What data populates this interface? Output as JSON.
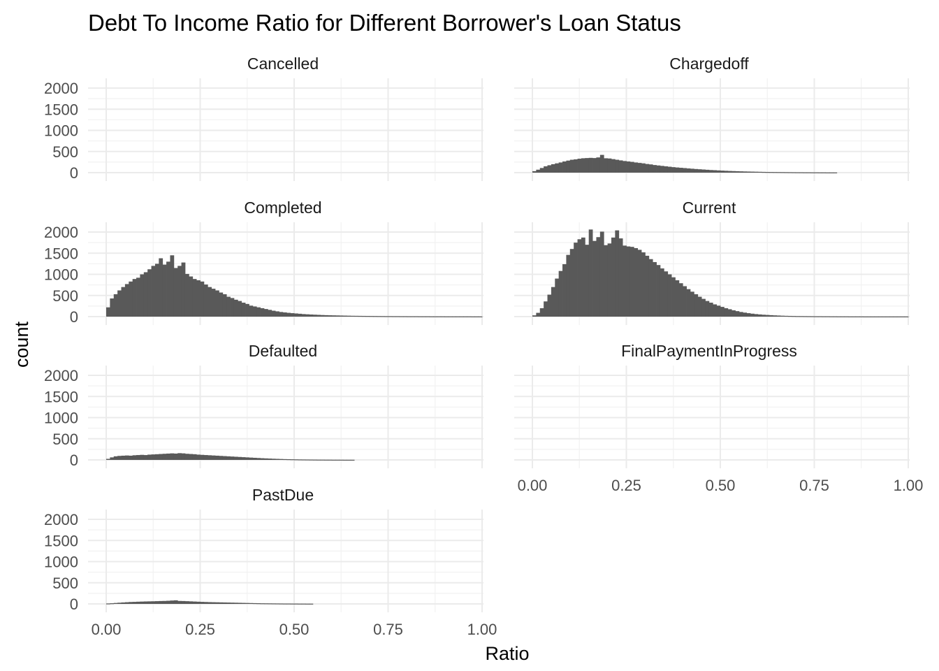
{
  "chart_data": {
    "type": "bar",
    "title": "Debt To Income Ratio for Different Borrower's Loan Status",
    "xlabel": "Ratio",
    "ylabel": "count",
    "xlim": [
      0,
      1
    ],
    "ylim": [
      0,
      2100
    ],
    "x_ticks": [
      "0.00",
      "0.25",
      "0.50",
      "0.75",
      "1.00"
    ],
    "y_ticks": [
      "0",
      "500",
      "1000",
      "1500",
      "2000"
    ],
    "bin_width": 0.01,
    "grid": true,
    "bar_color": "#595959",
    "panels": [
      {
        "name": "Cancelled",
        "counts": []
      },
      {
        "name": "Chargedoff",
        "counts": [
          35,
          70,
          110,
          150,
          175,
          200,
          220,
          240,
          265,
          285,
          305,
          315,
          330,
          340,
          345,
          350,
          345,
          360,
          420,
          340,
          335,
          320,
          305,
          290,
          275,
          265,
          255,
          240,
          230,
          220,
          205,
          195,
          180,
          170,
          160,
          150,
          140,
          130,
          122,
          115,
          108,
          100,
          93,
          86,
          80,
          74,
          68,
          62,
          58,
          53,
          48,
          44,
          40,
          37,
          34,
          31,
          28,
          26,
          24,
          22,
          20,
          18,
          16,
          15,
          14,
          13,
          12,
          11,
          10,
          9,
          8,
          8,
          7,
          7,
          6,
          6,
          5,
          5,
          4,
          4,
          4
        ]
      },
      {
        "name": "Completed",
        "counts": [
          220,
          430,
          530,
          620,
          700,
          770,
          830,
          890,
          920,
          1000,
          1050,
          1120,
          1200,
          1250,
          1380,
          1230,
          1300,
          1450,
          1150,
          1200,
          1280,
          1010,
          950,
          890,
          860,
          830,
          760,
          700,
          660,
          620,
          570,
          530,
          470,
          440,
          400,
          370,
          330,
          300,
          260,
          240,
          220,
          200,
          180,
          160,
          140,
          125,
          110,
          100,
          90,
          82,
          75,
          68,
          60,
          55,
          50,
          46,
          42,
          38,
          35,
          32,
          30,
          28,
          26,
          24,
          22,
          20,
          19,
          18,
          17,
          16,
          15,
          14,
          13,
          12,
          11,
          11,
          10,
          10,
          9,
          9,
          8,
          8,
          8,
          7,
          7,
          7,
          6,
          6,
          6,
          6,
          5,
          5,
          5,
          5,
          5,
          5,
          5,
          4,
          4,
          4
        ]
      },
      {
        "name": "Current",
        "counts": [
          30,
          90,
          200,
          360,
          520,
          700,
          900,
          1080,
          1240,
          1460,
          1600,
          1750,
          1830,
          1870,
          1700,
          2060,
          1790,
          1880,
          2010,
          1690,
          1730,
          1870,
          2040,
          1850,
          1680,
          1660,
          1650,
          1620,
          1580,
          1520,
          1440,
          1360,
          1290,
          1220,
          1140,
          1070,
          1000,
          930,
          860,
          790,
          720,
          650,
          590,
          530,
          470,
          420,
          370,
          330,
          290,
          260,
          230,
          200,
          175,
          150,
          130,
          110,
          95,
          82,
          70,
          60,
          52,
          45,
          40,
          35,
          30,
          26,
          22,
          19,
          17,
          15,
          13,
          12,
          11,
          10,
          9,
          8,
          8,
          7,
          7,
          6,
          6,
          5,
          5,
          5,
          4,
          4,
          4,
          4,
          3,
          3,
          3,
          3,
          3,
          3,
          3,
          3,
          3,
          3,
          3,
          3
        ]
      },
      {
        "name": "Defaulted",
        "counts": [
          25,
          60,
          85,
          95,
          100,
          105,
          100,
          110,
          115,
          120,
          115,
          125,
          130,
          135,
          140,
          145,
          150,
          155,
          150,
          160,
          155,
          145,
          140,
          135,
          125,
          120,
          115,
          110,
          105,
          100,
          95,
          90,
          85,
          80,
          75,
          70,
          65,
          60,
          55,
          50,
          45,
          40,
          36,
          32,
          28,
          25,
          22,
          19,
          17,
          15,
          13,
          11,
          10,
          9,
          8,
          7,
          6,
          6,
          5,
          5,
          4,
          4,
          4,
          3,
          3,
          3
        ]
      },
      {
        "name": "FinalPaymentInProgress",
        "counts": []
      },
      {
        "name": "PastDue",
        "counts": [
          10,
          15,
          22,
          28,
          34,
          40,
          45,
          48,
          52,
          55,
          58,
          60,
          62,
          65,
          68,
          70,
          74,
          80,
          85,
          70,
          68,
          64,
          60,
          56,
          52,
          48,
          45,
          42,
          40,
          38,
          36,
          34,
          32,
          30,
          28,
          26,
          24,
          22,
          20,
          18,
          16,
          14,
          13,
          12,
          11,
          10,
          9,
          8,
          8,
          7,
          7,
          6,
          6,
          5,
          5
        ]
      }
    ]
  }
}
